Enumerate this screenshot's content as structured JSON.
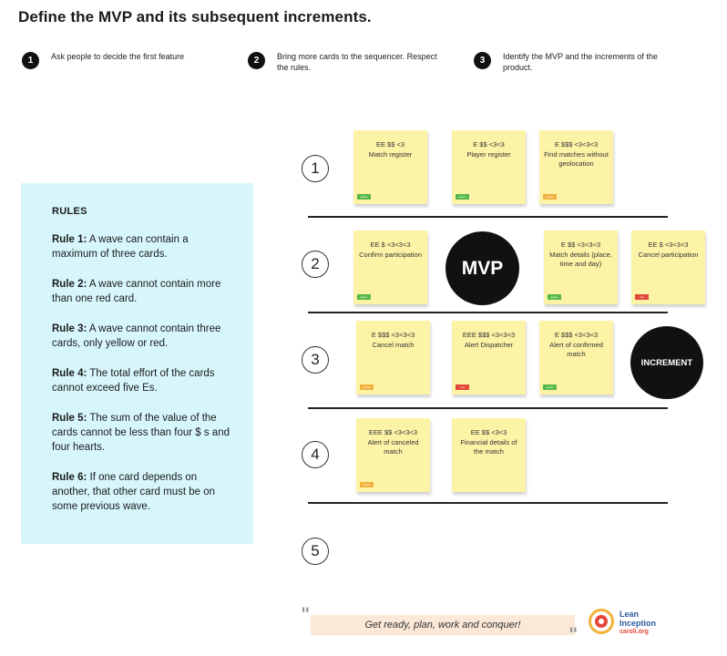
{
  "title": "Define the MVP and its subsequent increments.",
  "steps": [
    {
      "num": "1",
      "text": "Ask people to decide the first feature"
    },
    {
      "num": "2",
      "text_line1": "Bring more cards to the sequencer. Respect",
      "text_line2": "the rules."
    },
    {
      "num": "3",
      "text_line1": "Identify the MVP and the increments of the",
      "text_line2": "product."
    }
  ],
  "rules": {
    "title": "RULES",
    "items": [
      {
        "label": "Rule 1:",
        "text": " A wave can contain a maximum of three cards."
      },
      {
        "label": "Rule 2:",
        "text": " A wave cannot contain more than one red card."
      },
      {
        "label": "Rule 3:",
        "text": " A wave cannot contain three cards, only yellow or red."
      },
      {
        "label": "Rule 4:",
        "text": " The total effort of the cards cannot exceed five Es."
      },
      {
        "label": "Rule 5:",
        "text": " The sum of the value of the cards cannot be less than four $ s and four hearts."
      },
      {
        "label": "Rule 6:",
        "text": " If one card depends on another, that other card must be on some previous wave."
      }
    ]
  },
  "waves": [
    "1",
    "2",
    "3",
    "4",
    "5"
  ],
  "cards": [
    {
      "effort": "EE $$ <3",
      "name": "Match register",
      "tag": "green",
      "tag_label": "green"
    },
    {
      "effort": "E $$ <3<3",
      "name": "Player register",
      "tag": "green",
      "tag_label": "green"
    },
    {
      "effort": "E $$$ <3<3<3",
      "name": "Find matches without geolocation",
      "tag": "yellow",
      "tag_label": "yellow"
    },
    {
      "effort": "EE $ <3<3<3",
      "name": "Confirm participation",
      "tag": "green",
      "tag_label": "green"
    },
    {
      "effort": "E $$ <3<3<3",
      "name": "Match details (place, time and day)",
      "tag": "green",
      "tag_label": "green"
    },
    {
      "effort": "EE $ <3<3<3",
      "name": "Cancel participation",
      "tag": "red",
      "tag_label": "red"
    },
    {
      "effort": "E $$$ <3<3<3",
      "name": "Cancel match",
      "tag": "yellow",
      "tag_label": "yellow"
    },
    {
      "effort": "EEE $$$ <3<3<3",
      "name": "Alert Dispatcher",
      "tag": "red",
      "tag_label": "red"
    },
    {
      "effort": "E $$$ <3<3<3",
      "name": "Alert of confirmed match",
      "tag": "green",
      "tag_label": "green"
    },
    {
      "effort": "EEE $$ <3<3<3",
      "name": "Alert of canceled match",
      "tag": "yellow",
      "tag_label": "yellow"
    },
    {
      "effort": "EE $$ <3<3",
      "name": "Financial details of the match",
      "tag": "",
      "tag_label": ""
    }
  ],
  "badges": {
    "mvp": "MVP",
    "increment": "INCREMENT"
  },
  "footer": {
    "quote": "Get ready, plan, work and conquer!",
    "logo_line1": "Lean",
    "logo_line2": "Inception",
    "logo_url": "caroli.org"
  },
  "colors": {
    "card": "#fdf3a6",
    "rules_bg": "#d7f6fc",
    "green": "#56b84a",
    "yellow": "#f2b13b",
    "red": "#e3473a"
  }
}
